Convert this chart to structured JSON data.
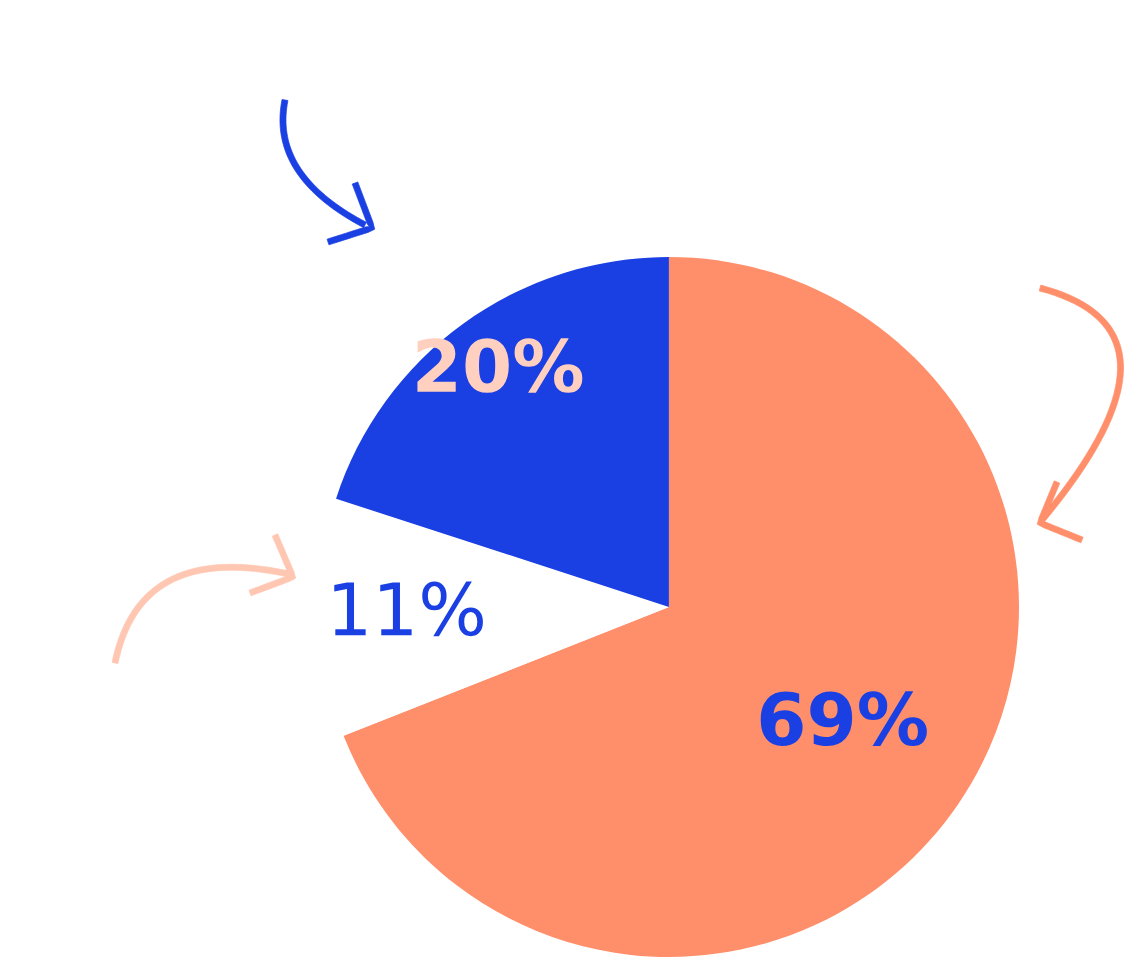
{
  "chart_data": {
    "type": "pie",
    "categories": [
      null,
      null,
      null
    ],
    "values": [
      69,
      11,
      20
    ],
    "colors": [
      "#ff8f6b",
      "#ffffff",
      "#1a3fe3"
    ],
    "value_labels": [
      "69%",
      "11%",
      "20%"
    ],
    "legend": false
  }
}
